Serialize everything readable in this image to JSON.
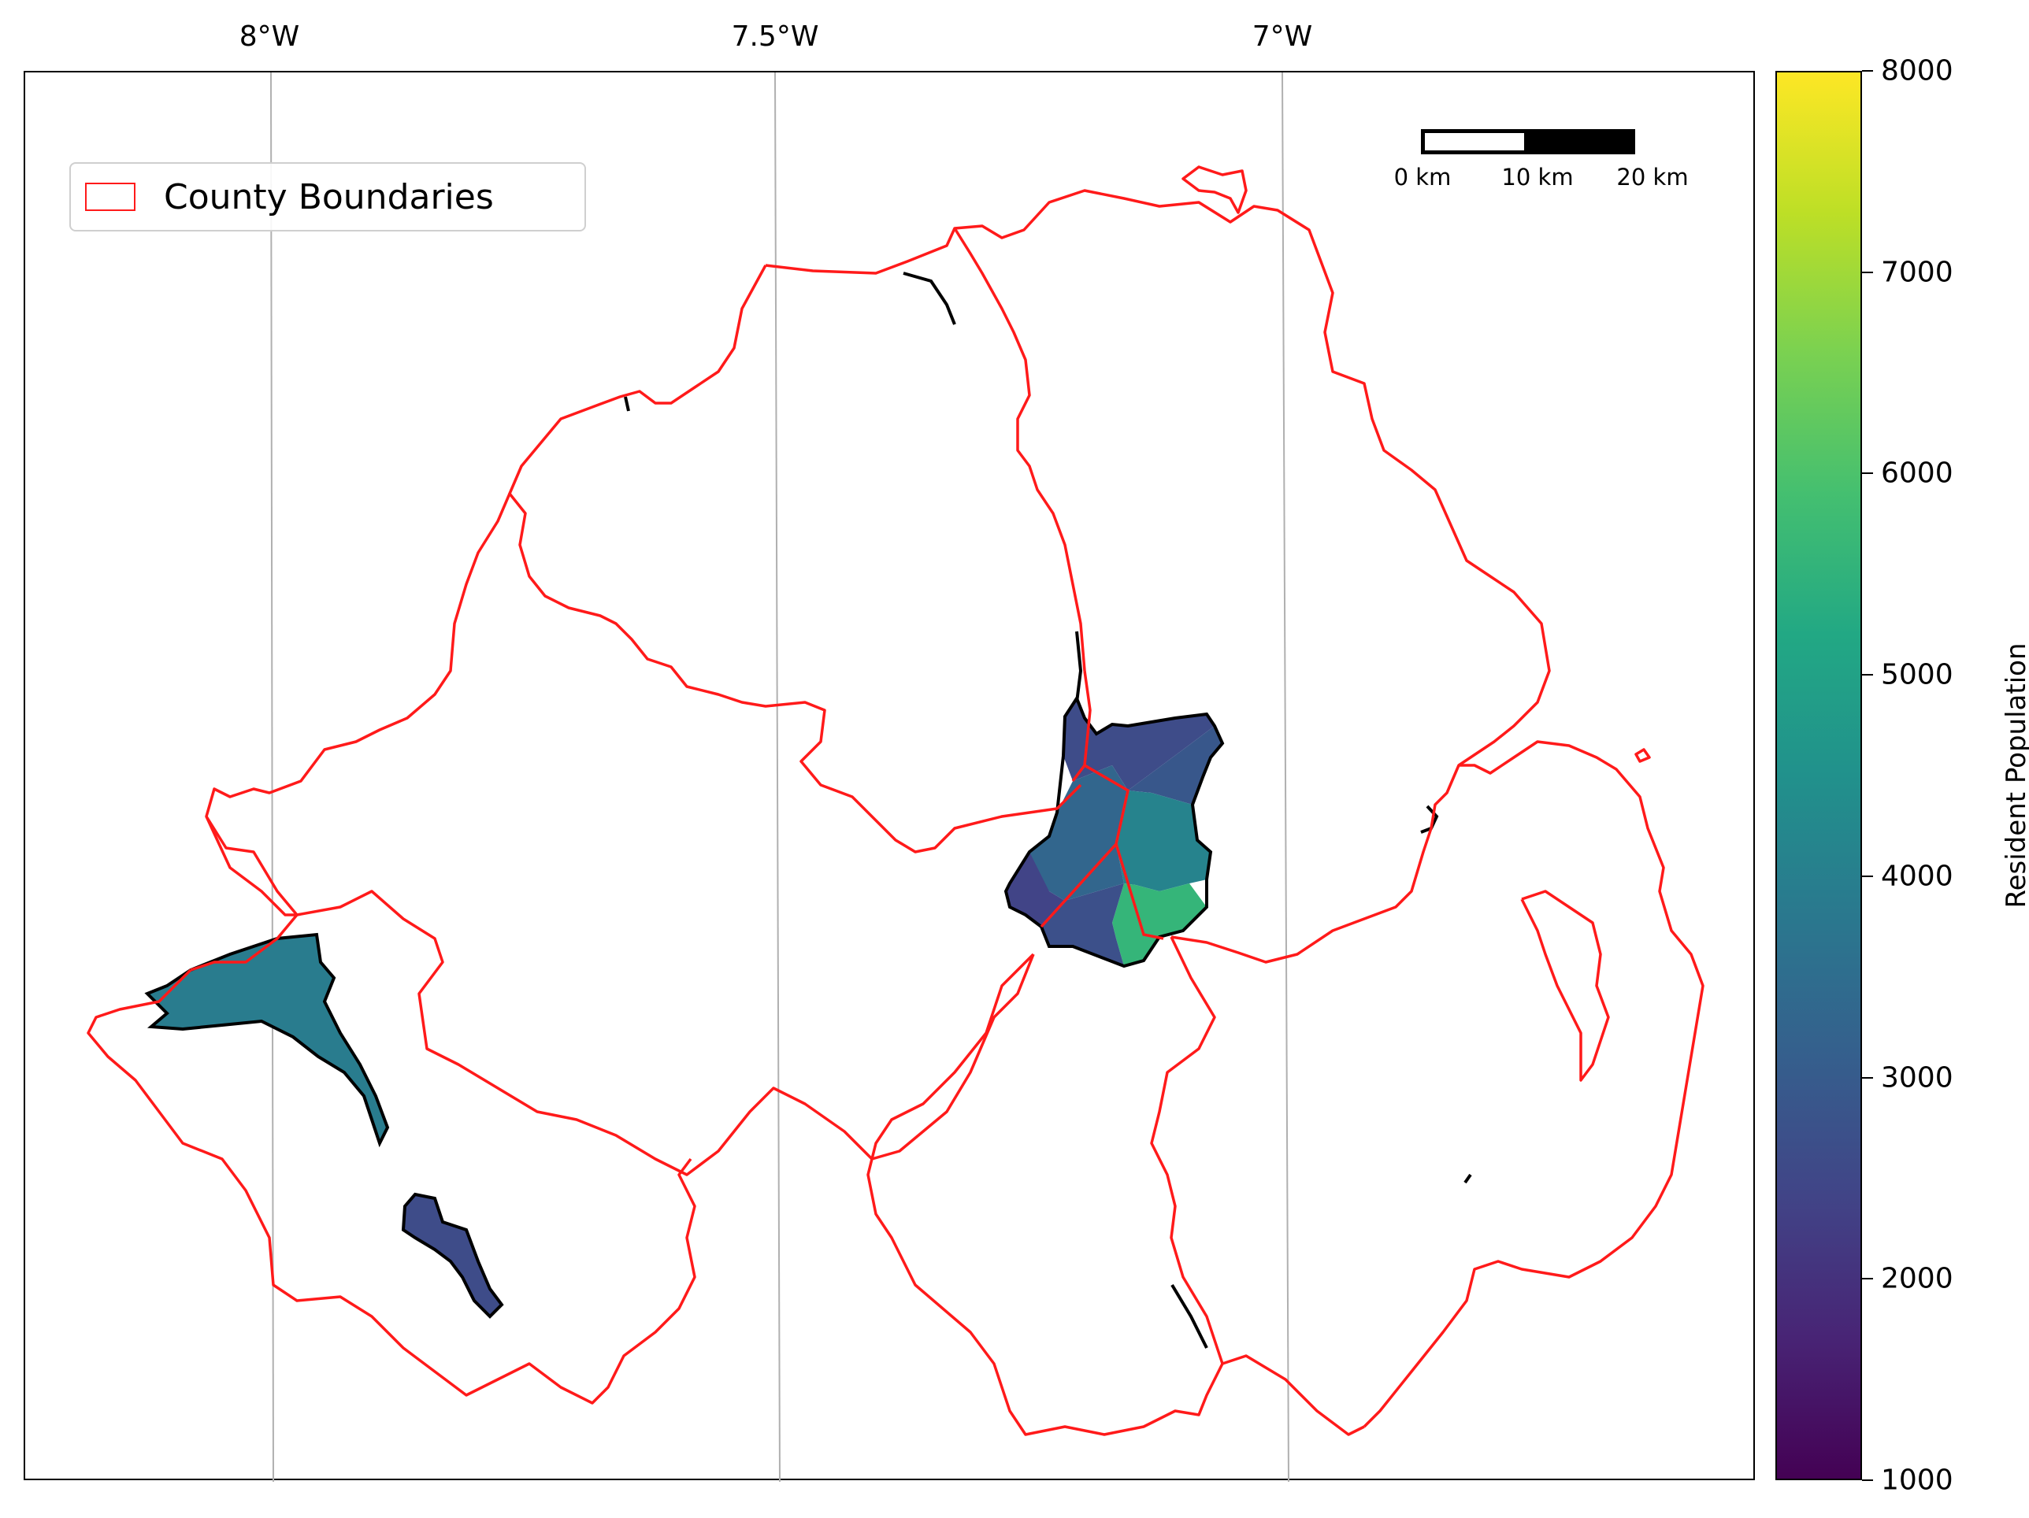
{
  "map": {
    "longitude_labels": [
      "8°W",
      "7.5°W",
      "7°W"
    ],
    "legend": {
      "label": "County Boundaries",
      "swatch_color": "#ff1a1a"
    },
    "scale_bar": {
      "labels": [
        "0 km",
        "10 km",
        "20 km"
      ]
    },
    "boundary_color": "#ff1a1a",
    "water_outline_color": "#000000"
  },
  "colorbar": {
    "title": "Resident Population",
    "ticks": [
      "1000",
      "2000",
      "3000",
      "4000",
      "5000",
      "6000",
      "7000",
      "8000"
    ],
    "range": [
      1000,
      8000
    ],
    "colormap": "viridis"
  },
  "chart_data": {
    "type": "choropleth",
    "title": "",
    "value_label": "Resident Population",
    "value_range": [
      1000,
      8000
    ],
    "regions": [
      {
        "value": 2600
      },
      {
        "value": 2900
      },
      {
        "value": 4100
      },
      {
        "value": 3300
      },
      {
        "value": 5600
      },
      {
        "value": 2400
      },
      {
        "value": 2700
      },
      {
        "value": 3900
      }
    ]
  }
}
